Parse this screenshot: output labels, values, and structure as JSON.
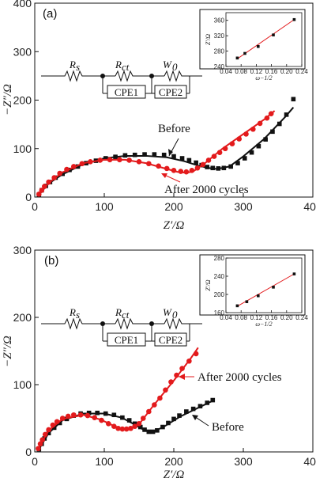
{
  "chart_data": [
    {
      "type": "scatter",
      "panel_label": "(a)",
      "xlabel": "Z′/Ω",
      "ylabel": "−Z″/Ω",
      "xlim": [
        0,
        400
      ],
      "ylim": [
        0,
        400
      ],
      "xticks": [
        0,
        100,
        200,
        300,
        400
      ],
      "yticks": [
        0,
        100,
        200,
        300,
        400
      ],
      "annotations": [
        "Before",
        "After 2000 cycles"
      ],
      "circuit": {
        "rs": "R",
        "rs_sub": "s",
        "rct": "R",
        "rct_sub": "ct",
        "w": "W",
        "w_sub": "0",
        "cpe1": "CPE1",
        "cpe2": "CPE2"
      },
      "series": [
        {
          "key": "before",
          "color": "#111111",
          "marker": "square",
          "x": [
            6,
            10,
            16,
            22,
            30,
            40,
            50,
            62,
            74,
            88,
            102,
            116,
            130,
            144,
            158,
            172,
            186,
            200,
            212,
            222,
            232,
            240,
            248,
            256,
            264,
            272,
            282,
            292,
            302,
            312,
            322,
            332,
            342,
            352,
            362,
            372
          ],
          "y": [
            5,
            14,
            23,
            31,
            40,
            48,
            56,
            63,
            70,
            75,
            80,
            83,
            86,
            87,
            88,
            88,
            87,
            84,
            80,
            76,
            71,
            66,
            62,
            60,
            59,
            60,
            63,
            70,
            80,
            92,
            105,
            119,
            135,
            151,
            170,
            202
          ]
        },
        {
          "key": "after",
          "color": "#e31a1c",
          "marker": "circle",
          "x": [
            6,
            10,
            14,
            20,
            28,
            36,
            46,
            56,
            68,
            80,
            94,
            108,
            122,
            136,
            150,
            164,
            178,
            190,
            200,
            210,
            218,
            226,
            234,
            242,
            250,
            258,
            266,
            274,
            284,
            294,
            304,
            314,
            324,
            334,
            340
          ],
          "y": [
            6,
            14,
            22,
            31,
            40,
            49,
            57,
            63,
            69,
            73,
            76,
            77,
            77,
            76,
            73,
            69,
            64,
            59,
            55,
            53,
            52,
            55,
            60,
            67,
            76,
            84,
            92,
            100,
            110,
            120,
            130,
            140,
            152,
            163,
            172
          ]
        }
      ],
      "fits": {
        "before": {
          "x": [
            6,
            20,
            40,
            70,
            100,
            130,
            160,
            190,
            215,
            235,
            250,
            262,
            280,
            300,
            330,
            360,
            372
          ],
          "y": [
            5,
            28,
            47,
            68,
            80,
            85,
            85,
            82,
            74,
            65,
            60,
            58,
            63,
            84,
            120,
            165,
            185
          ]
        },
        "after": {
          "x": [
            6,
            20,
            40,
            70,
            100,
            130,
            160,
            185,
            205,
            218,
            228,
            245,
            270,
            300,
            330,
            345
          ],
          "y": [
            6,
            29,
            51,
            70,
            77,
            77,
            70,
            60,
            52,
            50,
            53,
            70,
            100,
            130,
            160,
            178
          ]
        }
      },
      "inset": {
        "xlabel": "ω−1/2",
        "ylabel": "Z′/Ω",
        "xlim": [
          0.04,
          0.24
        ],
        "ylim": [
          240,
          380
        ],
        "xticks": [
          "0.04",
          "0.08",
          "0.12",
          "0.16",
          "0.20",
          "0.24"
        ],
        "yticks": [
          "240",
          "280",
          "320",
          "360"
        ],
        "points": {
          "x": [
            0.07,
            0.09,
            0.125,
            0.165,
            0.22
          ],
          "y": [
            262,
            274,
            292,
            322,
            362
          ]
        },
        "fit": {
          "x": [
            0.07,
            0.22
          ],
          "y": [
            260,
            362
          ]
        }
      }
    },
    {
      "type": "scatter",
      "panel_label": "(b)",
      "xlabel": "Z′/Ω",
      "ylabel": "−Z″/Ω",
      "xlim": [
        0,
        400
      ],
      "ylim": [
        0,
        300
      ],
      "xticks": [
        0,
        100,
        200,
        300,
        400
      ],
      "yticks": [
        0,
        100,
        200,
        300
      ],
      "annotations": [
        "After 2000 cycles",
        "Before"
      ],
      "circuit": {
        "rs": "R",
        "rs_sub": "s",
        "rct": "R",
        "rct_sub": "ct",
        "w": "W",
        "w_sub": "0",
        "cpe1": "CPE1",
        "cpe2": "CPE2"
      },
      "series": [
        {
          "key": "before",
          "color": "#111111",
          "marker": "square",
          "x": [
            6,
            10,
            14,
            20,
            28,
            36,
            46,
            56,
            66,
            78,
            90,
            102,
            114,
            126,
            136,
            144,
            152,
            158,
            164,
            170,
            176,
            184,
            192,
            200,
            208,
            218,
            228,
            238,
            248,
            256
          ],
          "y": [
            4,
            12,
            20,
            28,
            36,
            43,
            49,
            54,
            57,
            58,
            58,
            57,
            55,
            51,
            47,
            42,
            37,
            33,
            30,
            30,
            32,
            37,
            43,
            49,
            54,
            60,
            64,
            68,
            73,
            77
          ]
        },
        {
          "key": "after",
          "color": "#e31a1c",
          "marker": "circle",
          "x": [
            5,
            8,
            11,
            15,
            20,
            26,
            32,
            40,
            48,
            56,
            66,
            76,
            86,
            96,
            106,
            114,
            120,
            126,
            132,
            138,
            144,
            150,
            156,
            164,
            172,
            180,
            188,
            196,
            204,
            212,
            222,
            232
          ],
          "y": [
            5,
            12,
            18,
            26,
            33,
            40,
            45,
            50,
            53,
            55,
            55,
            54,
            51,
            47,
            42,
            38,
            35,
            34,
            34,
            35,
            38,
            42,
            50,
            60,
            70,
            80,
            92,
            104,
            114,
            124,
            135,
            146
          ]
        }
      ],
      "fits": {
        "before": {
          "x": [
            6,
            20,
            40,
            70,
            100,
            125,
            145,
            158,
            170,
            185,
            210,
            240,
            256
          ],
          "y": [
            4,
            28,
            47,
            57,
            57,
            51,
            40,
            32,
            30,
            37,
            53,
            68,
            76
          ]
        },
        "after": {
          "x": [
            5,
            20,
            40,
            70,
            95,
            115,
            128,
            138,
            150,
            170,
            200,
            225,
            235
          ],
          "y": [
            5,
            32,
            49,
            55,
            48,
            38,
            34,
            34,
            41,
            68,
            106,
            140,
            155
          ]
        }
      },
      "inset": {
        "xlabel": "ω−1/2",
        "ylabel": "Z′/Ω",
        "xlim": [
          0.04,
          0.24
        ],
        "ylim": [
          160,
          280
        ],
        "xticks": [
          "0.04",
          "0.08",
          "0.12",
          "0.16",
          "0.20",
          "0.24"
        ],
        "yticks": [
          "160",
          "200",
          "240",
          "280"
        ],
        "points": {
          "x": [
            0.07,
            0.095,
            0.125,
            0.165,
            0.22
          ],
          "y": [
            175,
            184,
            197,
            216,
            245
          ]
        },
        "fit": {
          "x": [
            0.07,
            0.22
          ],
          "y": [
            174,
            245
          ]
        }
      }
    }
  ]
}
